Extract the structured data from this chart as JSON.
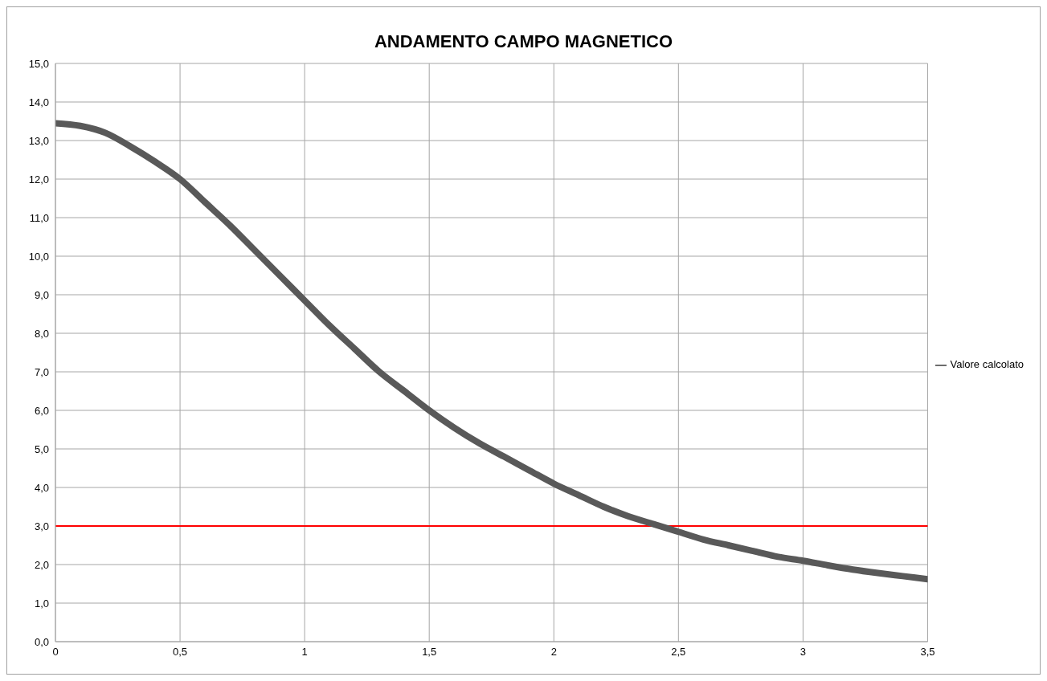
{
  "chart_data": {
    "type": "line",
    "title": "ANDAMENTO CAMPO MAGNETICO",
    "x": [
      0,
      0.1,
      0.2,
      0.3,
      0.4,
      0.5,
      0.6,
      0.7,
      0.8,
      0.9,
      1.0,
      1.1,
      1.2,
      1.3,
      1.4,
      1.5,
      1.6,
      1.7,
      1.8,
      1.9,
      2.0,
      2.1,
      2.2,
      2.3,
      2.4,
      2.5,
      2.6,
      2.7,
      2.8,
      2.9,
      3.0,
      3.1,
      3.2,
      3.3,
      3.4,
      3.5
    ],
    "series": [
      {
        "name": "Valore calcolato",
        "color": "#595959",
        "values": [
          13.45,
          13.38,
          13.2,
          12.85,
          12.45,
          12.0,
          11.4,
          10.8,
          10.15,
          9.5,
          8.85,
          8.2,
          7.6,
          7.0,
          6.5,
          6.0,
          5.55,
          5.15,
          4.8,
          4.45,
          4.1,
          3.8,
          3.5,
          3.25,
          3.05,
          2.85,
          2.65,
          2.5,
          2.35,
          2.2,
          2.1,
          1.98,
          1.87,
          1.78,
          1.7,
          1.62
        ]
      }
    ],
    "xlim": [
      0,
      3.5
    ],
    "xticks": [
      0,
      {
        "value": 0.5,
        "label": "0,5"
      },
      1,
      {
        "value": 1.5,
        "label": "1,5"
      },
      2,
      {
        "value": 2.5,
        "label": "2,5"
      },
      3,
      {
        "value": 3.5,
        "label": "3,5"
      }
    ],
    "ylim": [
      0,
      15
    ],
    "yticks": [
      {
        "value": 0,
        "label": "0,0"
      },
      {
        "value": 1,
        "label": "1,0"
      },
      {
        "value": 2,
        "label": "2,0"
      },
      {
        "value": 3,
        "label": "3,0"
      },
      {
        "value": 4,
        "label": "4,0"
      },
      {
        "value": 5,
        "label": "5,0"
      },
      {
        "value": 6,
        "label": "6,0"
      },
      {
        "value": 7,
        "label": "7,0"
      },
      {
        "value": 8,
        "label": "8,0"
      },
      {
        "value": 9,
        "label": "9,0"
      },
      {
        "value": 10,
        "label": "10,0"
      },
      {
        "value": 11,
        "label": "11,0"
      },
      {
        "value": 12,
        "label": "12,0"
      },
      {
        "value": 13,
        "label": "13,0"
      },
      {
        "value": 14,
        "label": "14,0"
      },
      {
        "value": 15,
        "label": "15,0"
      }
    ],
    "ref_lines": [
      {
        "axis": "y",
        "value": 3,
        "color": "#ff0000",
        "line_style": "solid"
      }
    ],
    "grid": true,
    "legend": "right",
    "marker": "none",
    "line_style": "solid"
  }
}
